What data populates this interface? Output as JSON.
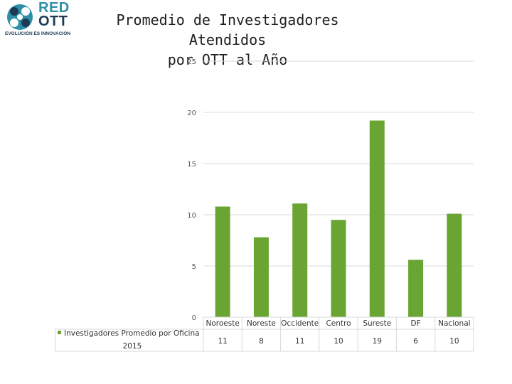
{
  "logo": {
    "line1": "RED",
    "line2": "OTT",
    "tagline": "EVOLUCIÓN ES INNOVACIÓN",
    "colors": {
      "teal": "#2e8fa8",
      "navy": "#1f3b54"
    }
  },
  "chart_data": {
    "type": "bar",
    "title": "Promedio de Investigadores Atendidos\npor  OTT al Año",
    "categories": [
      "Noroeste",
      "Noreste",
      "Occidente",
      "Centro",
      "Sureste",
      "DF",
      "Nacional"
    ],
    "series": [
      {
        "name": "Investigadores Promedio por Oficina 2015",
        "values": [
          10.8,
          7.8,
          11.1,
          9.5,
          19.2,
          5.6,
          10.1
        ],
        "table_labels": [
          "11",
          "8",
          "11",
          "10",
          "19",
          "6",
          "10"
        ],
        "color": "#6aa533"
      }
    ],
    "yticks": [
      "0",
      "5",
      "10",
      "15",
      "20",
      "25"
    ],
    "ylim": [
      0,
      25
    ],
    "grid": true,
    "data_table": true
  }
}
